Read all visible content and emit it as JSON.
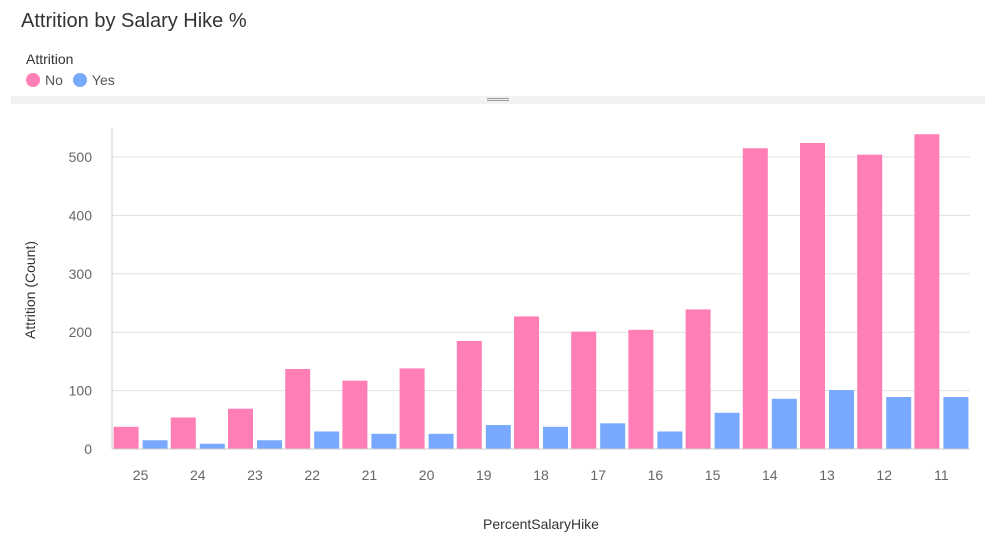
{
  "chart_data": {
    "type": "bar",
    "title": "Attrition by Salary Hike %",
    "legend_title": "Attrition",
    "legend_position": "top-left",
    "xlabel": "PercentSalaryHike",
    "ylabel": "Attrition (Count)",
    "categories": [
      "25",
      "24",
      "23",
      "22",
      "21",
      "20",
      "19",
      "18",
      "17",
      "16",
      "15",
      "14",
      "13",
      "12",
      "11"
    ],
    "series": [
      {
        "name": "No",
        "color": "#ff7eb6",
        "values": [
          38,
          54,
          69,
          137,
          117,
          138,
          185,
          227,
          201,
          204,
          239,
          515,
          524,
          504,
          539
        ]
      },
      {
        "name": "Yes",
        "color": "#78a9ff",
        "values": [
          15,
          9,
          15,
          30,
          26,
          26,
          41,
          38,
          44,
          30,
          62,
          86,
          101,
          89,
          89
        ]
      }
    ],
    "yticks": [
      0,
      100,
      200,
      300,
      400,
      500
    ],
    "ylim": [
      0,
      550
    ],
    "grid": true
  }
}
